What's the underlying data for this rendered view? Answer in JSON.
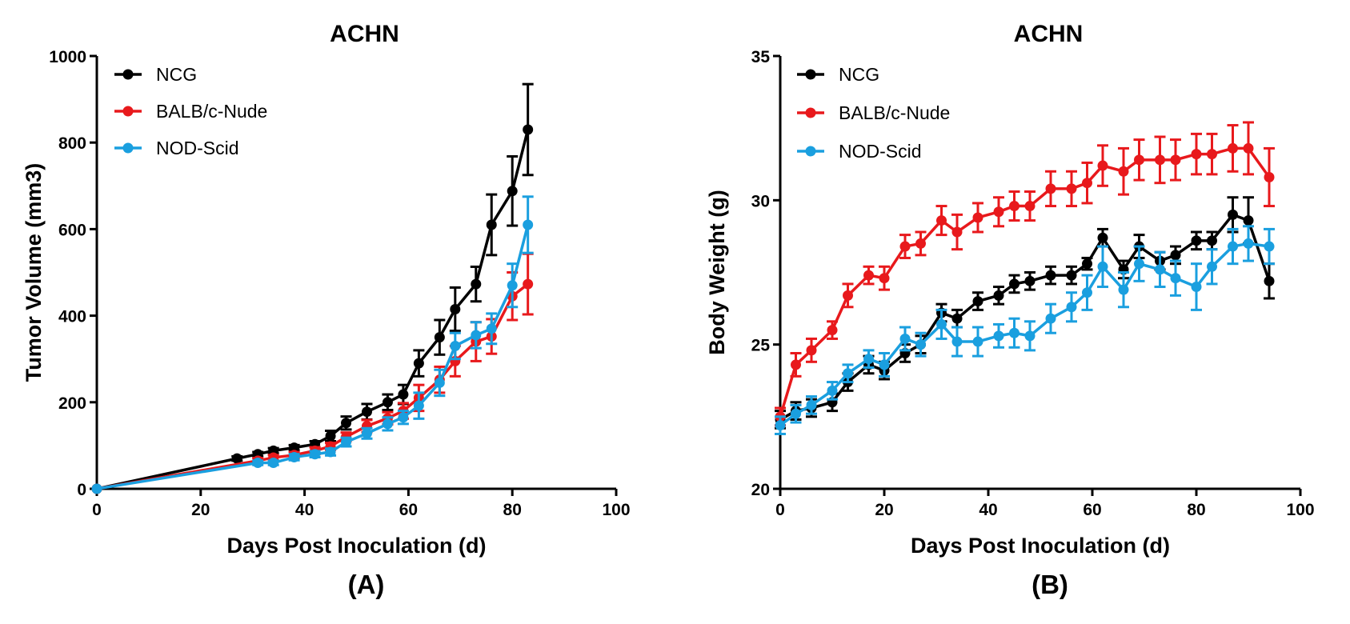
{
  "chart_data": [
    {
      "type": "line",
      "title": "ACHN",
      "xlabel": "Days Post Inoculation (d)",
      "ylabel": "Tumor Volume (mm3)",
      "panel_label": "(A)",
      "xlim": [
        0,
        100
      ],
      "ylim": [
        0,
        1000
      ],
      "xticks": [
        0,
        20,
        40,
        60,
        80,
        100
      ],
      "yticks": [
        0,
        200,
        400,
        600,
        800,
        1000
      ],
      "legend_position": "top-left",
      "grid": false,
      "series": [
        {
          "name": "NCG",
          "color": "#000000",
          "x": [
            0,
            27,
            31,
            34,
            38,
            42,
            45,
            48,
            52,
            56,
            59,
            62,
            66,
            69,
            73,
            76,
            80,
            83
          ],
          "y": [
            0,
            70,
            80,
            88,
            95,
            103,
            122,
            152,
            178,
            200,
            218,
            290,
            350,
            415,
            473,
            610,
            688,
            830
          ],
          "err": [
            0,
            5,
            5,
            6,
            6,
            7,
            12,
            15,
            18,
            18,
            22,
            30,
            40,
            50,
            40,
            70,
            80,
            105
          ]
        },
        {
          "name": "BALB/c-Nude",
          "color": "#e8191c",
          "x": [
            0,
            31,
            34,
            38,
            42,
            45,
            48,
            52,
            56,
            59,
            62,
            66,
            69,
            73,
            76,
            80,
            83
          ],
          "y": [
            0,
            65,
            72,
            78,
            88,
            98,
            120,
            145,
            163,
            180,
            210,
            252,
            295,
            340,
            352,
            445,
            473
          ],
          "err": [
            0,
            6,
            6,
            7,
            8,
            8,
            10,
            14,
            14,
            18,
            30,
            30,
            35,
            45,
            40,
            55,
            70
          ]
        },
        {
          "name": "NOD-Scid",
          "color": "#1a9fdf",
          "x": [
            0,
            31,
            34,
            38,
            42,
            45,
            48,
            52,
            56,
            59,
            62,
            66,
            69,
            73,
            76,
            80,
            83
          ],
          "y": [
            0,
            60,
            60,
            73,
            80,
            85,
            108,
            128,
            150,
            165,
            192,
            245,
            330,
            355,
            370,
            470,
            610
          ],
          "err": [
            0,
            5,
            5,
            7,
            7,
            8,
            10,
            12,
            15,
            15,
            30,
            30,
            30,
            30,
            35,
            50,
            65
          ]
        }
      ]
    },
    {
      "type": "line",
      "title": "ACHN",
      "xlabel": "Days Post Inoculation (d)",
      "ylabel": "Body Weight (g)",
      "panel_label": "(B)",
      "xlim": [
        0,
        100
      ],
      "ylim": [
        20,
        35
      ],
      "xticks": [
        0,
        20,
        40,
        60,
        80,
        100
      ],
      "yticks": [
        20,
        25,
        30,
        35
      ],
      "legend_position": "top-left",
      "grid": false,
      "series": [
        {
          "name": "NCG",
          "color": "#000000",
          "x": [
            0,
            3,
            6,
            10,
            13,
            17,
            20,
            24,
            27,
            31,
            34,
            38,
            42,
            45,
            48,
            52,
            56,
            59,
            62,
            66,
            69,
            73,
            76,
            80,
            83,
            87,
            90,
            94
          ],
          "y": [
            22.4,
            22.7,
            22.8,
            23.0,
            23.7,
            24.3,
            24.1,
            24.7,
            25.0,
            26.1,
            25.9,
            26.5,
            26.7,
            27.1,
            27.2,
            27.4,
            27.4,
            27.8,
            28.7,
            27.6,
            28.4,
            27.9,
            28.1,
            28.6,
            28.6,
            29.5,
            29.3,
            27.2
          ],
          "err": [
            0.3,
            0.3,
            0.3,
            0.3,
            0.3,
            0.3,
            0.3,
            0.3,
            0.3,
            0.3,
            0.3,
            0.3,
            0.3,
            0.3,
            0.3,
            0.3,
            0.3,
            0.2,
            0.3,
            0.3,
            0.4,
            0.3,
            0.3,
            0.3,
            0.3,
            0.6,
            0.8,
            0.6
          ]
        },
        {
          "name": "BALB/c-Nude",
          "color": "#e8191c",
          "x": [
            0,
            3,
            6,
            10,
            13,
            17,
            20,
            24,
            27,
            31,
            34,
            38,
            42,
            45,
            48,
            52,
            56,
            59,
            62,
            66,
            69,
            73,
            76,
            80,
            83,
            87,
            90,
            94
          ],
          "y": [
            22.5,
            24.3,
            24.8,
            25.5,
            26.7,
            27.4,
            27.3,
            28.4,
            28.5,
            29.3,
            28.9,
            29.4,
            29.6,
            29.8,
            29.8,
            30.4,
            30.4,
            30.6,
            31.2,
            31.0,
            31.4,
            31.4,
            31.4,
            31.6,
            31.6,
            31.8,
            31.8,
            30.8
          ],
          "err": [
            0.3,
            0.4,
            0.4,
            0.3,
            0.4,
            0.3,
            0.4,
            0.4,
            0.4,
            0.5,
            0.6,
            0.5,
            0.5,
            0.5,
            0.5,
            0.6,
            0.6,
            0.7,
            0.7,
            0.8,
            0.7,
            0.8,
            0.7,
            0.7,
            0.7,
            0.8,
            0.9,
            1.0
          ]
        },
        {
          "name": "NOD-Scid",
          "color": "#1a9fdf",
          "x": [
            0,
            3,
            6,
            10,
            13,
            17,
            20,
            24,
            27,
            31,
            34,
            38,
            42,
            45,
            48,
            52,
            56,
            59,
            62,
            66,
            69,
            73,
            76,
            80,
            83,
            87,
            90,
            94
          ],
          "y": [
            22.2,
            22.6,
            22.9,
            23.4,
            24.0,
            24.5,
            24.3,
            25.2,
            25.0,
            25.7,
            25.1,
            25.1,
            25.3,
            25.4,
            25.3,
            25.9,
            26.3,
            26.8,
            27.7,
            26.9,
            27.8,
            27.6,
            27.3,
            27.0,
            27.7,
            28.4,
            28.5,
            28.4
          ],
          "err": [
            0.3,
            0.3,
            0.3,
            0.3,
            0.3,
            0.3,
            0.4,
            0.4,
            0.4,
            0.5,
            0.5,
            0.5,
            0.4,
            0.5,
            0.5,
            0.5,
            0.5,
            0.6,
            0.7,
            0.6,
            0.6,
            0.6,
            0.6,
            0.8,
            0.6,
            0.6,
            0.6,
            0.6
          ]
        }
      ]
    }
  ]
}
